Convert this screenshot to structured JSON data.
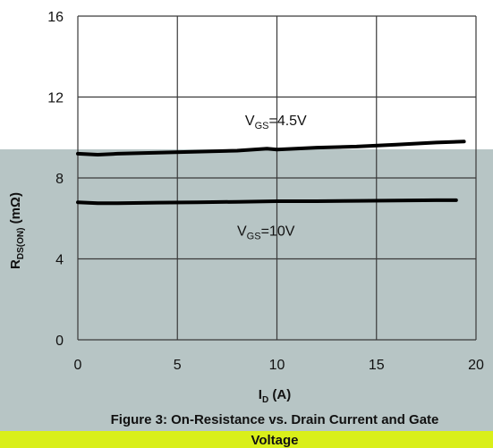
{
  "chart_data": {
    "type": "line",
    "title": "Figure 3: On-Resistance vs. Drain Current and Gate Voltage",
    "title_line1": "Figure 3: On-Resistance vs. Drain Current and Gate",
    "title_line2": "Voltage",
    "xlabel": "I",
    "xlabel_sub": "D",
    "xlabel_unit": " (A)",
    "ylabel": "R",
    "ylabel_sub": "DS(ON)",
    "ylabel_unit": " (mΩ)",
    "xlim": [
      0,
      20
    ],
    "ylim": [
      0,
      16
    ],
    "x_ticks": [
      0,
      5,
      10,
      15,
      20
    ],
    "y_ticks": [
      0,
      4,
      8,
      12,
      16
    ],
    "grid": true,
    "series": [
      {
        "name": "VGS=4.5V",
        "label_main": "V",
        "label_sub": "GS",
        "label_rest": "=4.5V",
        "label_at": [
          8.4,
          10.6
        ],
        "x": [
          0,
          1,
          2,
          4,
          6,
          8,
          9.5,
          10,
          12,
          14,
          16,
          18,
          19.4
        ],
        "y": [
          9.2,
          9.15,
          9.2,
          9.25,
          9.3,
          9.35,
          9.45,
          9.4,
          9.5,
          9.55,
          9.65,
          9.75,
          9.8
        ]
      },
      {
        "name": "VGS=10V",
        "label_main": "V",
        "label_sub": "GS",
        "label_rest": "=10V",
        "label_at": [
          8,
          5.15
        ],
        "x": [
          0,
          1,
          2,
          4,
          6,
          8,
          10,
          12,
          14,
          16,
          18,
          19
        ],
        "y": [
          6.8,
          6.75,
          6.75,
          6.78,
          6.8,
          6.82,
          6.85,
          6.85,
          6.87,
          6.88,
          6.9,
          6.9
        ]
      }
    ],
    "colors": {
      "line": "#000000",
      "grid": "#3a3a3a",
      "shade": "#b7c5c5",
      "band": "#d9ef1a"
    }
  }
}
